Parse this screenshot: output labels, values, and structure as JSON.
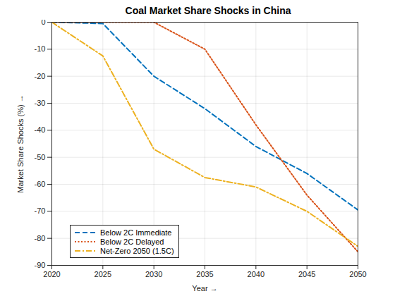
{
  "chart_data": {
    "type": "line",
    "title": "Coal Market Share Shocks in China",
    "xlabel": "Year",
    "ylabel": "Market Share Shocks (%)",
    "x": [
      2020,
      2025,
      2030,
      2035,
      2040,
      2045,
      2050
    ],
    "series": [
      {
        "name": "Below 2C Immediate",
        "color": "#0072BD",
        "line_style": "dashed",
        "values": [
          0,
          -0.5,
          -20,
          -32,
          -46,
          -56,
          -69.5
        ]
      },
      {
        "name": "Below 2C Delayed",
        "color": "#D95319",
        "line_style": "dotted",
        "values": [
          0,
          0,
          0,
          -10,
          -38,
          -64,
          -85
        ]
      },
      {
        "name": "Net-Zero 2050 (1.5C)",
        "color": "#EDB120",
        "line_style": "dashdot",
        "values": [
          0,
          -12.5,
          -47,
          -57.5,
          -61,
          -70,
          -83
        ]
      }
    ],
    "xlim": [
      2020,
      2050
    ],
    "ylim": [
      -90,
      0
    ],
    "xticks": [
      2020,
      2025,
      2030,
      2035,
      2040,
      2045,
      2050
    ],
    "yticks": [
      -90,
      -80,
      -70,
      -60,
      -50,
      -40,
      -30,
      -20,
      -10,
      0
    ],
    "grid": true,
    "legend": "lower left"
  }
}
